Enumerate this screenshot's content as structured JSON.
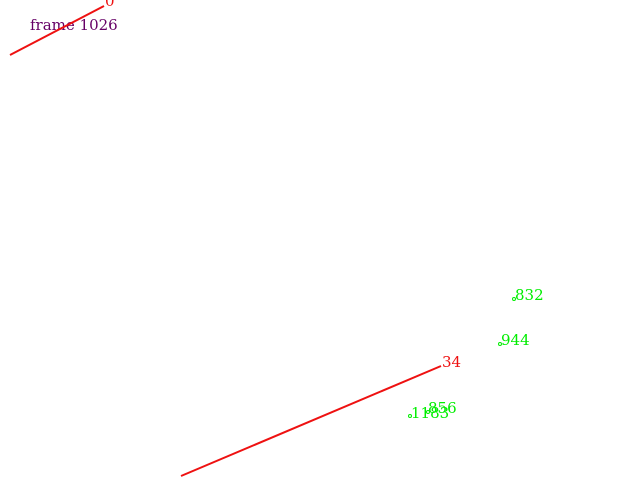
{
  "frame": {
    "label": "frame 1026",
    "color": "#660066"
  },
  "lines": [
    {
      "id": "0",
      "label": "0",
      "color": "#ee1111"
    },
    {
      "id": "34",
      "label": "34",
      "color": "#ee1111"
    }
  ],
  "points": [
    {
      "id": "832",
      "label": "832",
      "color": "#00ee00"
    },
    {
      "id": "944",
      "label": "944",
      "color": "#00ee00"
    },
    {
      "id": "856",
      "label": "856",
      "color": "#00ee00"
    },
    {
      "id": "1183",
      "label": "1183",
      "color": "#00ee00"
    }
  ]
}
